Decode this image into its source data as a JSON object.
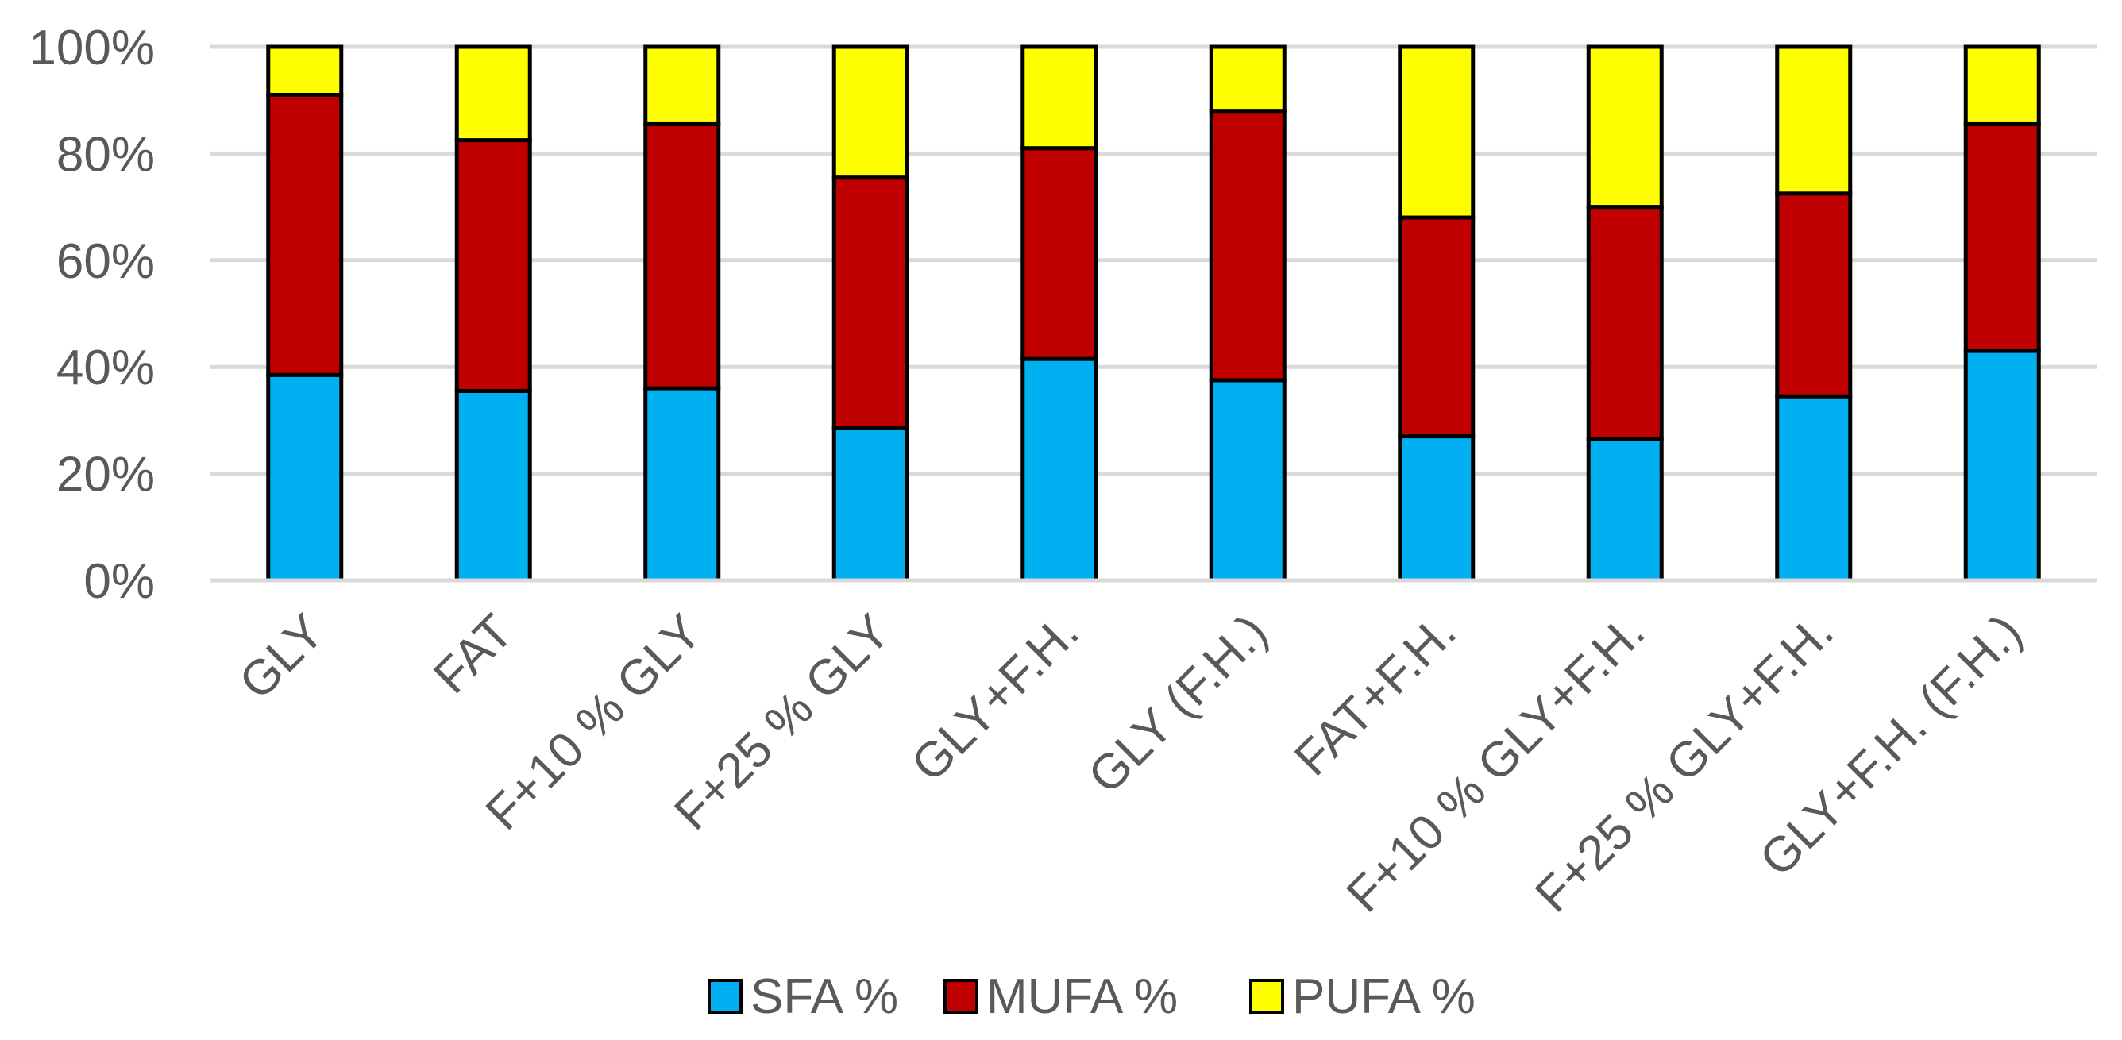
{
  "chart_data": {
    "type": "bar",
    "stacked": true,
    "percent": true,
    "title": "",
    "xlabel": "",
    "ylabel": "",
    "ylim": [
      0,
      100
    ],
    "yticks": [
      "0%",
      "20%",
      "40%",
      "60%",
      "80%",
      "100%"
    ],
    "ytick_values": [
      0,
      20,
      40,
      60,
      80,
      100
    ],
    "grid": true,
    "legend_position": "bottom",
    "categories": [
      "GLY",
      "FAT",
      "F+10 % GLY",
      "F+25 % GLY",
      "GLY+F.H.",
      "GLY (F.H.)",
      "FAT+F.H.",
      "F+10 % GLY+F.H.",
      "F+25 % GLY+F.H.",
      "GLY+F.H. (F.H.)"
    ],
    "series": [
      {
        "name": "SFA %",
        "color": "#00B0F0",
        "values": [
          38.5,
          35.5,
          36,
          28.5,
          41.5,
          37.5,
          27,
          26.5,
          34.5,
          43
        ]
      },
      {
        "name": "MUFA %",
        "color": "#C00000",
        "values": [
          52.5,
          47,
          49.5,
          47,
          39.5,
          50.5,
          41,
          43.5,
          38,
          42.5
        ]
      },
      {
        "name": "PUFA %",
        "color": "#FFFF00",
        "values": [
          9,
          17.5,
          14.5,
          24.5,
          19,
          12,
          32,
          30,
          27.5,
          14.5
        ]
      }
    ]
  }
}
